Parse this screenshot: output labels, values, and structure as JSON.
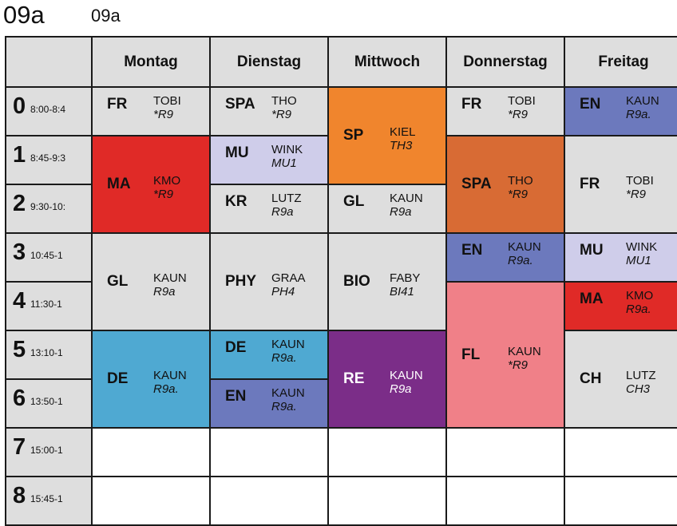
{
  "header": {
    "class_title": "09a",
    "class_subtitle": "09a"
  },
  "days": [
    "Montag",
    "Dienstag",
    "Mittwoch",
    "Donnerstag",
    "Freitag"
  ],
  "periods": [
    {
      "num": "0",
      "time": "8:00-8:4"
    },
    {
      "num": "1",
      "time": "8:45-9:3"
    },
    {
      "num": "2",
      "time": "9:30-10:"
    },
    {
      "num": "3",
      "time": "10:45-1"
    },
    {
      "num": "4",
      "time": "11:30-1"
    },
    {
      "num": "5",
      "time": "13:10-1"
    },
    {
      "num": "6",
      "time": "13:50-1"
    },
    {
      "num": "7",
      "time": "15:00-1"
    },
    {
      "num": "8",
      "time": "15:45-1"
    }
  ],
  "lessons": [
    {
      "day": 0,
      "start": 0,
      "span": 1,
      "subject": "FR",
      "teacher": "TOBI",
      "room": "*R9",
      "color": "#dedede",
      "text_color": "#111111"
    },
    {
      "day": 0,
      "start": 1,
      "span": 2,
      "subject": "MA",
      "teacher": "KMO",
      "room": "*R9",
      "color": "#e02a27",
      "text_color": "#111111"
    },
    {
      "day": 0,
      "start": 3,
      "span": 2,
      "subject": "GL",
      "teacher": "KAUN",
      "room": "R9a",
      "color": "#dedede",
      "text_color": "#111111"
    },
    {
      "day": 0,
      "start": 5,
      "span": 2,
      "subject": "DE",
      "teacher": "KAUN",
      "room": "R9a.",
      "color": "#4fa9d2",
      "text_color": "#111111"
    },
    {
      "day": 1,
      "start": 0,
      "span": 1,
      "subject": "SPA",
      "teacher": "THO",
      "room": "*R9",
      "color": "#dedede",
      "text_color": "#111111"
    },
    {
      "day": 1,
      "start": 1,
      "span": 1,
      "subject": "MU",
      "teacher": "WINK",
      "room": "MU1",
      "color": "#cfcdea",
      "text_color": "#111111"
    },
    {
      "day": 1,
      "start": 2,
      "span": 1,
      "subject": "KR",
      "teacher": "LUTZ",
      "room": "R9a",
      "color": "#dedede",
      "text_color": "#111111"
    },
    {
      "day": 1,
      "start": 3,
      "span": 2,
      "subject": "PHY",
      "teacher": "GRAA",
      "room": "PH4",
      "color": "#dedede",
      "text_color": "#111111"
    },
    {
      "day": 1,
      "start": 5,
      "span": 1,
      "subject": "DE",
      "teacher": "KAUN",
      "room": "R9a.",
      "color": "#4fa9d2",
      "text_color": "#111111"
    },
    {
      "day": 1,
      "start": 6,
      "span": 1,
      "subject": "EN",
      "teacher": "KAUN",
      "room": "R9a.",
      "color": "#6c79bd",
      "text_color": "#111111"
    },
    {
      "day": 2,
      "start": 0,
      "span": 2,
      "subject": "SP",
      "teacher": "KIEL",
      "room": "TH3",
      "color": "#f0852d",
      "text_color": "#111111"
    },
    {
      "day": 2,
      "start": 2,
      "span": 1,
      "subject": "GL",
      "teacher": "KAUN",
      "room": "R9a",
      "color": "#dedede",
      "text_color": "#111111"
    },
    {
      "day": 2,
      "start": 3,
      "span": 2,
      "subject": "BIO",
      "teacher": "FABY",
      "room": "BI41",
      "color": "#dedede",
      "text_color": "#111111"
    },
    {
      "day": 2,
      "start": 5,
      "span": 2,
      "subject": "RE",
      "teacher": "KAUN",
      "room": "R9a",
      "color": "#7b2d88",
      "text_color": "#ffffff"
    },
    {
      "day": 3,
      "start": 0,
      "span": 1,
      "subject": "FR",
      "teacher": "TOBI",
      "room": "*R9",
      "color": "#dedede",
      "text_color": "#111111"
    },
    {
      "day": 3,
      "start": 1,
      "span": 2,
      "subject": "SPA",
      "teacher": "THO",
      "room": "*R9",
      "color": "#d86b34",
      "text_color": "#111111"
    },
    {
      "day": 3,
      "start": 3,
      "span": 1,
      "subject": "EN",
      "teacher": "KAUN",
      "room": "R9a.",
      "color": "#6c79bd",
      "text_color": "#111111"
    },
    {
      "day": 3,
      "start": 4,
      "span": 3,
      "subject": "FL",
      "teacher": "KAUN",
      "room": "*R9",
      "color": "#f08088",
      "text_color": "#111111"
    },
    {
      "day": 4,
      "start": 0,
      "span": 1,
      "subject": "EN",
      "teacher": "KAUN",
      "room": "R9a.",
      "color": "#6c79bd",
      "text_color": "#111111"
    },
    {
      "day": 4,
      "start": 1,
      "span": 2,
      "subject": "FR",
      "teacher": "TOBI",
      "room": "*R9",
      "color": "#dedede",
      "text_color": "#111111"
    },
    {
      "day": 4,
      "start": 3,
      "span": 1,
      "subject": "MU",
      "teacher": "WINK",
      "room": "MU1",
      "color": "#cfcdea",
      "text_color": "#111111"
    },
    {
      "day": 4,
      "start": 4,
      "span": 1,
      "subject": "MA",
      "teacher": "KMO",
      "room": "R9a.",
      "color": "#e02a27",
      "text_color": "#111111"
    },
    {
      "day": 4,
      "start": 5,
      "span": 2,
      "subject": "CH",
      "teacher": "LUTZ",
      "room": "CH3",
      "color": "#dedede",
      "text_color": "#111111"
    }
  ],
  "empty_cells": [
    {
      "day": 0,
      "period": 7
    },
    {
      "day": 1,
      "period": 7
    },
    {
      "day": 2,
      "period": 7
    },
    {
      "day": 3,
      "period": 7
    },
    {
      "day": 4,
      "period": 7
    },
    {
      "day": 0,
      "period": 8
    },
    {
      "day": 1,
      "period": 8
    },
    {
      "day": 2,
      "period": 8
    },
    {
      "day": 3,
      "period": 8
    },
    {
      "day": 4,
      "period": 8
    }
  ]
}
